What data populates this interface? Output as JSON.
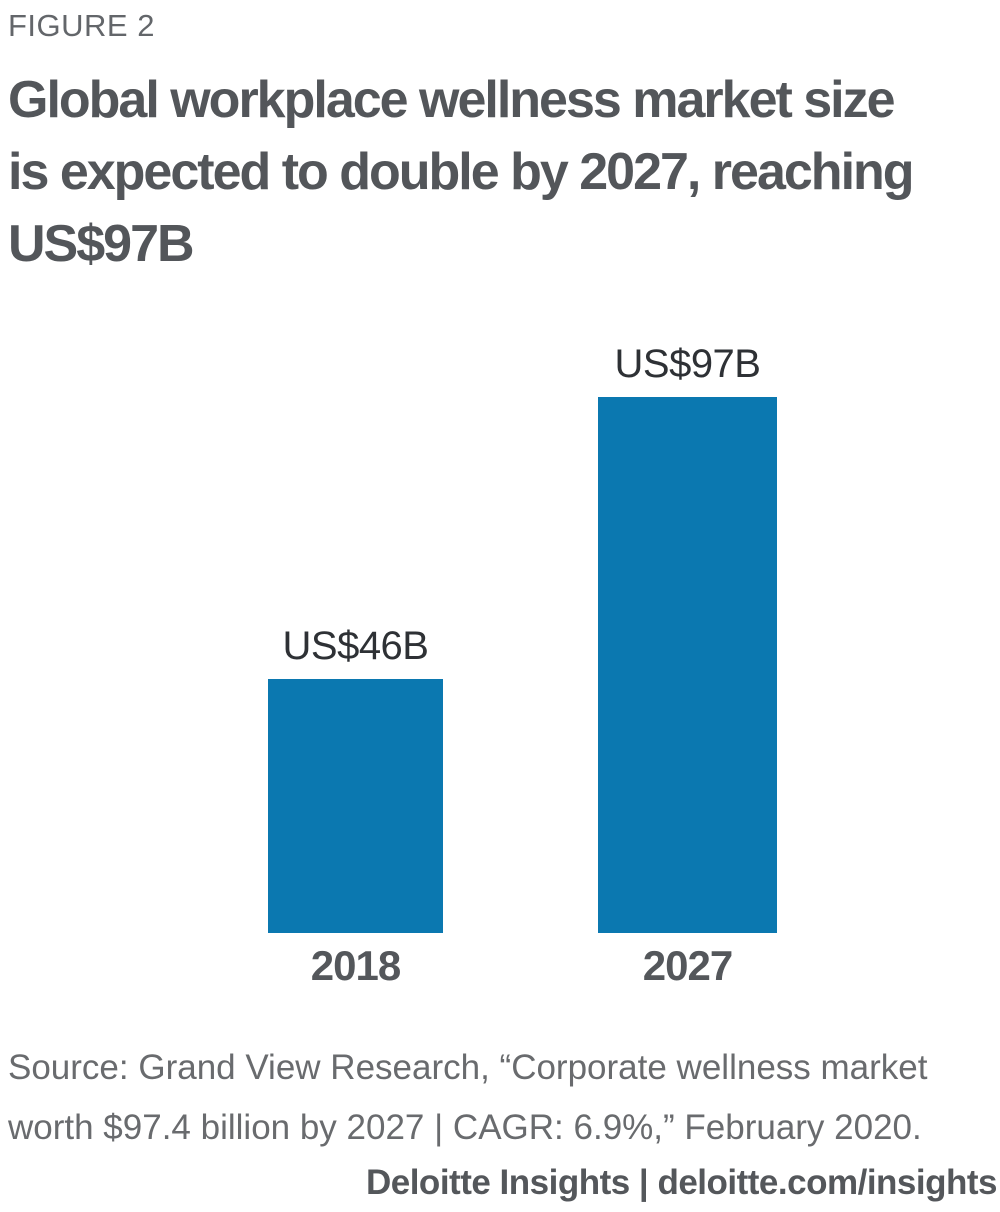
{
  "figure_label": "FIGURE 2",
  "title_lines": {
    "line1": "Global workplace wellness market size",
    "line2": "is expected to double by 2027, reaching",
    "line3": "US$97B"
  },
  "chart_data": {
    "type": "bar",
    "title": "Global workplace wellness market size is expected to double by 2027, reaching US$97B",
    "categories": [
      "2018",
      "2027"
    ],
    "values": [
      46,
      97
    ],
    "value_labels": [
      "US$46B",
      "US$97B"
    ],
    "unit": "US$ billions",
    "bar_color": "#0b78b0",
    "xlabel": "",
    "ylabel": "",
    "ylim": [
      0,
      97
    ],
    "grid": false,
    "legend": "none"
  },
  "source_text": "Source: Grand View Research, “Corporate wellness market worth $97.4 billion by 2027 | CAGR: 6.9%,” February 2020.",
  "footer": {
    "text": "Deloitte Insights | deloitte.com/insights"
  }
}
